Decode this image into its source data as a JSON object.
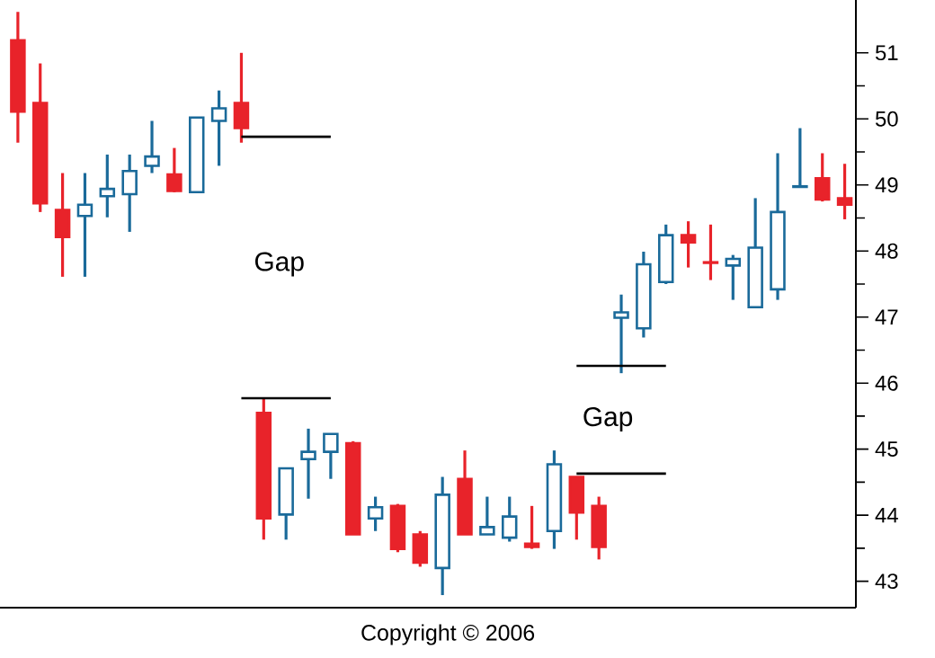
{
  "chart_data": {
    "type": "candlestick",
    "categories": [
      null,
      null,
      null,
      null,
      null,
      null,
      null,
      null,
      null,
      null,
      null,
      null,
      null,
      null,
      null,
      null,
      null,
      null,
      null,
      null,
      null,
      null,
      null,
      null,
      null,
      null,
      null,
      null,
      null,
      null,
      null,
      null,
      null,
      null,
      null,
      null,
      null,
      null
    ],
    "ohlc": [
      [
        51.19,
        51.62,
        49.64,
        50.11
      ],
      [
        50.24,
        50.84,
        48.59,
        48.72
      ],
      [
        48.62,
        49.18,
        47.61,
        48.21
      ],
      [
        48.53,
        49.18,
        47.61,
        48.7
      ],
      [
        48.83,
        49.46,
        48.51,
        48.94
      ],
      [
        48.86,
        49.46,
        48.29,
        49.21
      ],
      [
        49.29,
        49.97,
        49.18,
        49.43
      ],
      [
        49.16,
        49.56,
        48.89,
        48.91
      ],
      [
        48.89,
        50.02,
        48.89,
        50.02
      ],
      [
        49.97,
        50.43,
        49.29,
        50.16
      ],
      [
        50.24,
        51.0,
        49.64,
        49.86
      ],
      [
        45.55,
        45.77,
        43.63,
        43.95
      ],
      [
        44.01,
        44.71,
        43.63,
        44.71
      ],
      [
        44.85,
        45.31,
        44.25,
        44.96
      ],
      [
        44.96,
        45.23,
        44.55,
        45.23
      ],
      [
        45.09,
        45.12,
        43.71,
        43.71
      ],
      [
        43.95,
        44.28,
        43.76,
        44.12
      ],
      [
        44.14,
        44.17,
        43.44,
        43.49
      ],
      [
        43.71,
        43.76,
        43.22,
        43.28
      ],
      [
        43.2,
        44.58,
        42.79,
        44.31
      ],
      [
        44.55,
        44.98,
        43.71,
        43.71
      ],
      [
        43.71,
        44.28,
        43.71,
        43.82
      ],
      [
        43.66,
        44.28,
        43.6,
        43.98
      ],
      [
        43.57,
        44.14,
        43.49,
        43.52
      ],
      [
        43.76,
        44.98,
        43.49,
        44.77
      ],
      [
        44.58,
        44.58,
        43.63,
        44.04
      ],
      [
        44.14,
        44.28,
        43.33,
        43.52
      ],
      [
        46.99,
        47.34,
        46.15,
        47.07
      ],
      [
        46.83,
        47.99,
        46.69,
        47.8
      ],
      [
        47.53,
        48.4,
        47.5,
        48.24
      ],
      [
        48.24,
        48.45,
        47.75,
        48.13
      ],
      [
        47.83,
        48.4,
        47.56,
        47.82
      ],
      [
        47.78,
        47.94,
        47.26,
        47.88
      ],
      [
        47.15,
        48.8,
        47.15,
        48.05
      ],
      [
        47.42,
        49.48,
        47.26,
        48.59
      ],
      [
        48.97,
        49.86,
        48.97,
        48.98
      ],
      [
        49.1,
        49.48,
        48.75,
        48.78
      ],
      [
        48.8,
        49.32,
        48.48,
        48.7
      ]
    ],
    "colors": [
      "#e8232a",
      "#e8232a",
      "#e8232a",
      "#1a6a9a",
      "#1a6a9a",
      "#1a6a9a",
      "#1a6a9a",
      "#e8232a",
      "#1a6a9a",
      "#1a6a9a",
      "#e8232a",
      "#e8232a",
      "#1a6a9a",
      "#1a6a9a",
      "#1a6a9a",
      "#e8232a",
      "#1a6a9a",
      "#e8232a",
      "#e8232a",
      "#1a6a9a",
      "#e8232a",
      "#1a6a9a",
      "#1a6a9a",
      "#e8232a",
      "#1a6a9a",
      "#e8232a",
      "#e8232a",
      "#1a6a9a",
      "#1a6a9a",
      "#1a6a9a",
      "#e8232a",
      "#e8232a",
      "#1a6a9a",
      "#1a6a9a",
      "#1a6a9a",
      "#1a6a9a",
      "#e8232a",
      "#e8232a"
    ],
    "series": [
      {
        "type": "line",
        "color": "#000000",
        "values": [
          null,
          null,
          null,
          null,
          null,
          null,
          null,
          null,
          null,
          null,
          49.73,
          49.73,
          49.73,
          49.73,
          49.73,
          null,
          null,
          null,
          null,
          null,
          null,
          null,
          null,
          null,
          null,
          null,
          null,
          null,
          null,
          null,
          null,
          null,
          null,
          null,
          null,
          null,
          null,
          null
        ]
      },
      {
        "type": "line",
        "color": "#000000",
        "values": [
          null,
          null,
          null,
          null,
          null,
          null,
          null,
          null,
          null,
          null,
          45.77,
          45.77,
          45.77,
          45.77,
          45.77,
          null,
          null,
          null,
          null,
          null,
          null,
          null,
          null,
          null,
          null,
          null,
          null,
          null,
          null,
          null,
          null,
          null,
          null,
          null,
          null,
          null,
          null,
          null
        ]
      },
      {
        "type": "line",
        "color": "#000000",
        "values": [
          null,
          null,
          null,
          null,
          null,
          null,
          null,
          null,
          null,
          null,
          null,
          null,
          null,
          null,
          null,
          null,
          null,
          null,
          null,
          null,
          null,
          null,
          null,
          null,
          null,
          44.63,
          44.63,
          44.63,
          44.63,
          44.63,
          null,
          null,
          null,
          null,
          null,
          null,
          null,
          null
        ]
      },
      {
        "type": "line",
        "color": "#000000",
        "values": [
          null,
          null,
          null,
          null,
          null,
          null,
          null,
          null,
          null,
          null,
          null,
          null,
          null,
          null,
          null,
          null,
          null,
          null,
          null,
          null,
          null,
          null,
          null,
          null,
          null,
          46.26,
          46.26,
          46.26,
          46.26,
          46.26,
          null,
          null,
          null,
          null,
          null,
          null,
          null,
          null
        ]
      }
    ],
    "ylim": [
      42.6,
      51.8
    ],
    "yticks": [
      43,
      44,
      45,
      46,
      47,
      48,
      49,
      50,
      51
    ],
    "tick_labels": "y",
    "annotations": [
      "Gap",
      "Gap",
      "Copyright © 2006"
    ]
  }
}
